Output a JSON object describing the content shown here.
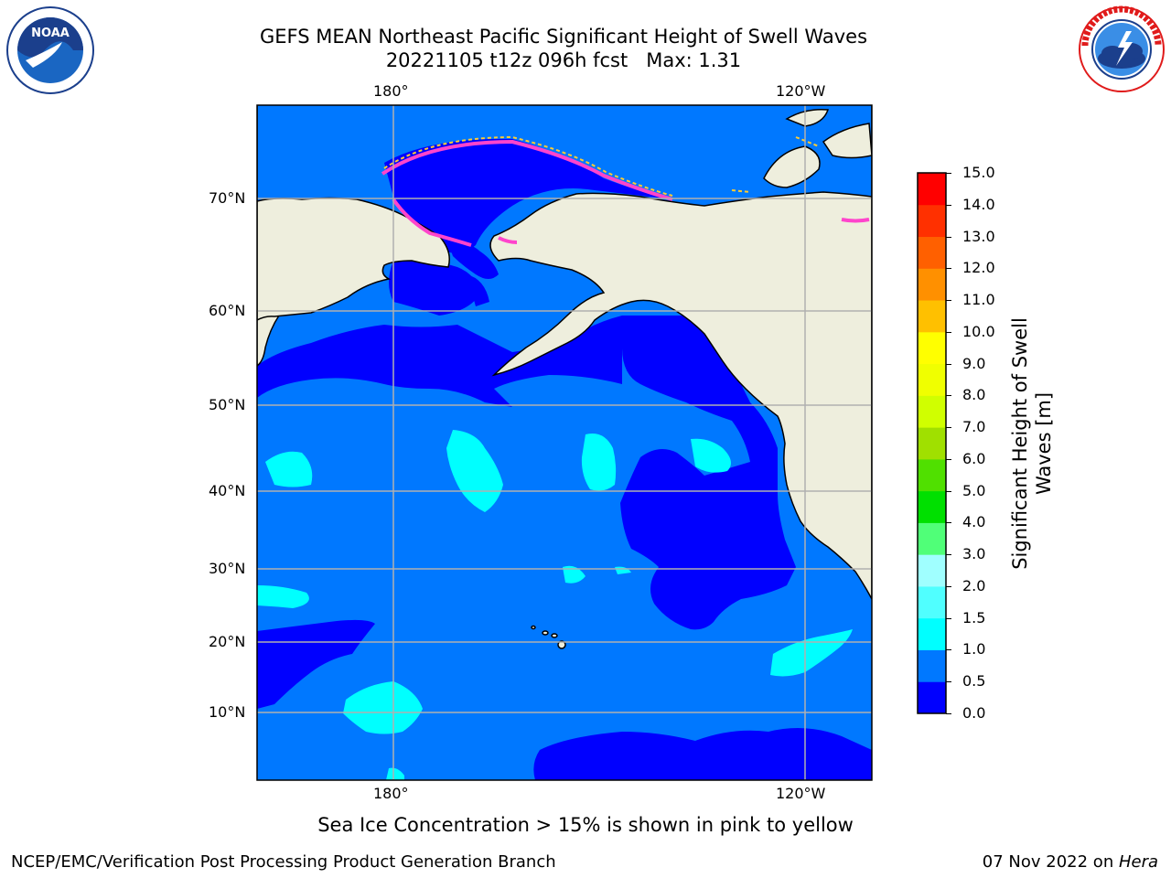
{
  "header": {
    "title_line1": "GEFS MEAN Northeast Pacific Significant Height of Swell Waves",
    "title_line2": "20221105 t12z 096h fcst   Max: 1.31"
  },
  "logos": {
    "left": {
      "text": "NOAA",
      "ring_text": "NATIONAL OCEANIC AND ATMOSPHERIC ADMINISTRATION · U.S. DEPARTMENT OF COMMERCE"
    },
    "right": {
      "ring_text": "NATIONAL WEATHER SERVICE"
    }
  },
  "map": {
    "lon_labels_top": [
      "180°",
      "120°W"
    ],
    "lon_labels_bottom": [
      "180°",
      "120°W"
    ],
    "lat_labels": [
      "70°N",
      "60°N",
      "50°N",
      "40°N",
      "30°N",
      "20°N",
      "10°N"
    ],
    "ocean_color": "#0078ff",
    "land_color": "#eeeedd"
  },
  "colorbar": {
    "title_line1": "Significant Height of Swell",
    "title_line2": "Waves [m]",
    "levels": [
      "0.0",
      "0.5",
      "1.0",
      "1.5",
      "2.0",
      "3.0",
      "4.0",
      "5.0",
      "6.0",
      "7.0",
      "8.0",
      "9.0",
      "10.0",
      "11.0",
      "12.0",
      "13.0",
      "14.0",
      "15.0"
    ],
    "colors": [
      "#0000ff",
      "#0078ff",
      "#00ffff",
      "#50ffff",
      "#a0ffff",
      "#50ff78",
      "#00e000",
      "#50e000",
      "#a0e000",
      "#d0ff00",
      "#f0ff00",
      "#ffff00",
      "#ffc000",
      "#ff9000",
      "#ff6000",
      "#ff3000",
      "#ff0000"
    ]
  },
  "caption": "Sea Ice Concentration > 15% is shown in pink to yellow",
  "footer": {
    "left": "NCEP/EMC/Verification Post Processing Product Generation Branch",
    "right_date": "07 Nov 2022 on ",
    "right_host": "Hera"
  }
}
